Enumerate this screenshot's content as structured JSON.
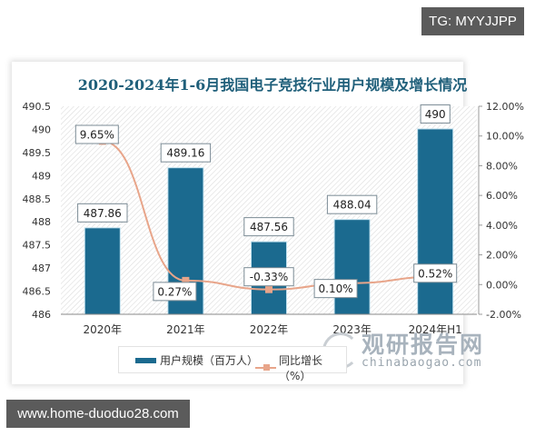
{
  "watermarks": {
    "top_right": "TG: MYYJJPP",
    "bottom_left": "www.home-duoduo28.com"
  },
  "brand": {
    "name_cn": "观研报告网",
    "url": "chinabaogao.com"
  },
  "chart_data": {
    "type": "bar+line",
    "title": "2020-2024年1-6月我国电子竞技行业用户规模及增长情况",
    "categories": [
      "2020年",
      "2021年",
      "2022年",
      "2023年",
      "2024年H1"
    ],
    "series": [
      {
        "name": "用户规模（百万人）",
        "type": "bar",
        "axis": "left",
        "color": "#1b6a8f",
        "values": [
          487.86,
          489.16,
          487.56,
          488.04,
          490
        ],
        "labels": [
          "487.86",
          "489.16",
          "487.56",
          "488.04",
          "490"
        ]
      },
      {
        "name": "同比增长（%）",
        "type": "line",
        "axis": "right",
        "color": "#e8a58a",
        "values": [
          9.65,
          0.27,
          -0.33,
          0.1,
          0.52
        ],
        "labels": [
          "9.65%",
          "0.27%",
          "-0.33%",
          "0.10%",
          "0.52%"
        ]
      }
    ],
    "left_axis": {
      "ylim": [
        486,
        490.5
      ],
      "ticks": [
        "490.5",
        "490",
        "489.5",
        "489",
        "488.5",
        "488",
        "487.5",
        "487",
        "486.5",
        "486"
      ]
    },
    "right_axis": {
      "ylim": [
        -2,
        12
      ],
      "ticks": [
        "12.00%",
        "10.00%",
        "8.00%",
        "6.00%",
        "4.00%",
        "2.00%",
        "0.00%",
        "-2.00%"
      ]
    },
    "xlabel": "",
    "ylabel": "",
    "legend_position": "bottom",
    "grid": false
  },
  "legend": {
    "bar_label": "用户规模（百万人）",
    "line_label": "同比增长（%）"
  }
}
